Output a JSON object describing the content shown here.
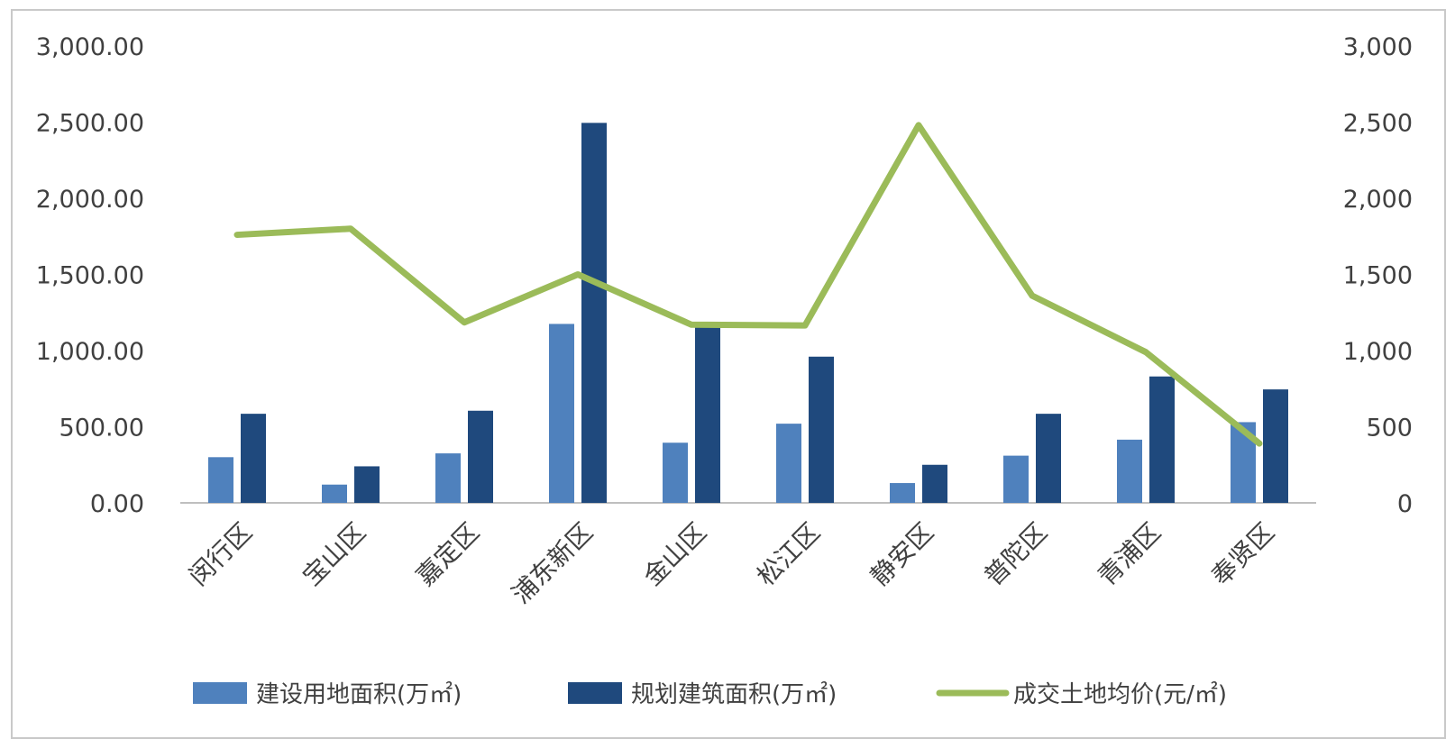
{
  "chart_data": {
    "type": "bar",
    "categories": [
      "闵行区",
      "宝山区",
      "嘉定区",
      "浦东新区",
      "金山区",
      "松江区",
      "静安区",
      "普陀区",
      "青浦区",
      "奉贤区"
    ],
    "series": [
      {
        "name": "建设用地面积(万㎡)",
        "kind": "bar",
        "axis": "left",
        "color": "#4f81bd",
        "values": [
          300,
          120,
          325,
          1175,
          395,
          520,
          130,
          310,
          415,
          530
        ]
      },
      {
        "name": "规划建筑面积(万㎡)",
        "kind": "bar",
        "axis": "left",
        "color": "#1f497d",
        "values": [
          585,
          240,
          605,
          2495,
          1165,
          960,
          250,
          585,
          830,
          745
        ]
      },
      {
        "name": "成交土地均价(元/㎡)",
        "kind": "line",
        "axis": "right",
        "color": "#9bbb59",
        "values": [
          1760,
          1800,
          1185,
          1500,
          1170,
          1165,
          2480,
          1360,
          990,
          390
        ]
      }
    ],
    "y_left": {
      "min": 0,
      "max": 3000,
      "ticks": [
        "0.00",
        "500.00",
        "1,000.00",
        "1,500.00",
        "2,000.00",
        "2,500.00",
        "3,000.00"
      ]
    },
    "y_right": {
      "min": 0,
      "max": 3000,
      "ticks": [
        "0",
        "500",
        "1,000",
        "1,500",
        "2,000",
        "2,500",
        "3,000"
      ]
    },
    "grid": false,
    "legend_position": "bottom"
  }
}
